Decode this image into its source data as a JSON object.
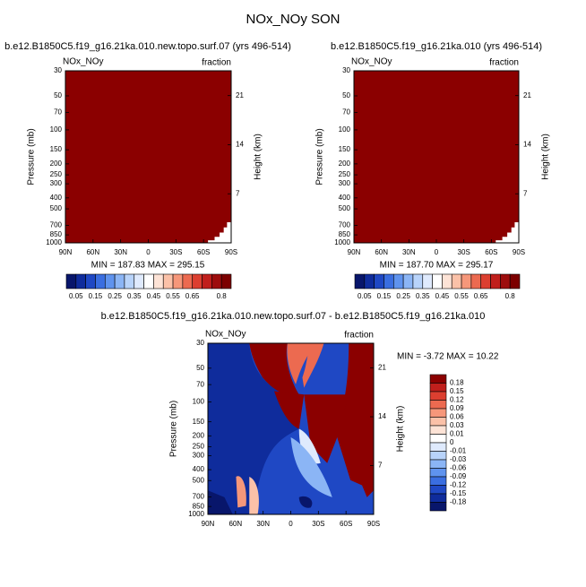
{
  "title": "NOx_NOy SON",
  "chart_data": [
    {
      "type": "contour",
      "title": "b.e12.B1850C5.f19_g16.21ka.010.new.topo.surf.07 (yrs 496-514)",
      "left_label": "NOx_NOy",
      "right_label": "fraction",
      "ylabel": "Pressure (mb)",
      "y2label": "Height (km)",
      "ylim": [
        1000,
        30
      ],
      "ylog": true,
      "yticks": [
        30,
        50,
        70,
        100,
        150,
        200,
        250,
        300,
        400,
        500,
        700,
        850,
        1000
      ],
      "y2lim": [
        0,
        24.54
      ],
      "y2ticks": [
        7,
        14,
        21
      ],
      "xlim": [
        90,
        -90
      ],
      "xticks": [
        {
          "value": 90,
          "label": "90N"
        },
        {
          "value": 60,
          "label": "60N"
        },
        {
          "value": 30,
          "label": "30N"
        },
        0,
        {
          "value": -30,
          "label": "30S"
        },
        {
          "value": -60,
          "label": "60S"
        },
        {
          "value": -90,
          "label": "90S"
        }
      ],
      "stats": "MIN = 187.83   MAX = 295.15",
      "colorbar": {
        "orientation": "horizontal",
        "lim": [
          0,
          0.85
        ],
        "ticks": [
          0.05,
          0.15,
          0.25,
          0.35,
          0.45,
          0.55,
          0.65,
          0.8
        ],
        "colors": [
          "#08166b",
          "#0f2c9c",
          "#1f48c4",
          "#3a6ee0",
          "#5f93ee",
          "#8bb5f5",
          "#b8d3fa",
          "#dfeafd",
          "#ffffff",
          "#fde3d6",
          "#fbc1a8",
          "#f6977a",
          "#ec6a50",
          "#dc3f30",
          "#c01f1c",
          "#9d0d0d",
          "#7c0000"
        ]
      }
    },
    {
      "type": "contour",
      "title": "b.e12.B1850C5.f19_g16.21ka.010 (yrs 496-514)",
      "left_label": "NOx_NOy",
      "right_label": "fraction",
      "ylabel": "Pressure (mb)",
      "y2label": "Height (km)",
      "ylim": [
        1000,
        30
      ],
      "ylog": true,
      "yticks": [
        30,
        50,
        70,
        100,
        150,
        200,
        250,
        300,
        400,
        500,
        700,
        850,
        1000
      ],
      "y2lim": [
        0,
        24.54
      ],
      "y2ticks": [
        7,
        14,
        21
      ],
      "xlim": [
        90,
        -90
      ],
      "xticks": [
        {
          "value": 90,
          "label": "90N"
        },
        {
          "value": 60,
          "label": "60N"
        },
        {
          "value": 30,
          "label": "30N"
        },
        0,
        {
          "value": -30,
          "label": "30S"
        },
        {
          "value": -60,
          "label": "60S"
        },
        {
          "value": -90,
          "label": "90S"
        }
      ],
      "stats": "MIN = 187.70   MAX = 295.17",
      "colorbar": {
        "orientation": "horizontal",
        "lim": [
          0,
          0.85
        ],
        "ticks": [
          0.05,
          0.15,
          0.25,
          0.35,
          0.45,
          0.55,
          0.65,
          0.8
        ],
        "colors": [
          "#08166b",
          "#0f2c9c",
          "#1f48c4",
          "#3a6ee0",
          "#5f93ee",
          "#8bb5f5",
          "#b8d3fa",
          "#dfeafd",
          "#ffffff",
          "#fde3d6",
          "#fbc1a8",
          "#f6977a",
          "#ec6a50",
          "#dc3f30",
          "#c01f1c",
          "#9d0d0d",
          "#7c0000"
        ]
      }
    },
    {
      "type": "contour",
      "title": "b.e12.B1850C5.f19_g16.21ka.010.new.topo.surf.07 - b.e12.B1850C5.f19_g16.21ka.010",
      "left_label": "NOx_NOy",
      "right_label": "fraction",
      "ylabel": "Pressure (mb)",
      "y2label": "Height (km)",
      "ylim": [
        1000,
        30
      ],
      "ylog": true,
      "yticks": [
        30,
        50,
        70,
        100,
        150,
        200,
        250,
        300,
        400,
        500,
        700,
        850,
        1000
      ],
      "y2lim": [
        0,
        24.54
      ],
      "y2ticks": [
        7,
        14,
        21
      ],
      "xlim": [
        90,
        -90
      ],
      "xticks": [
        {
          "value": 90,
          "label": "90N"
        },
        {
          "value": 60,
          "label": "60N"
        },
        {
          "value": 30,
          "label": "30N"
        },
        0,
        {
          "value": -30,
          "label": "30S"
        },
        {
          "value": -60,
          "label": "60S"
        },
        {
          "value": -90,
          "label": "90S"
        }
      ],
      "stats": "MIN = -3.72   MAX = 10.22",
      "colorbar": {
        "orientation": "vertical",
        "levels": [
          0.18,
          0.15,
          0.12,
          0.09,
          0.06,
          0.03,
          0.01,
          0,
          -0.01,
          -0.03,
          -0.06,
          -0.09,
          -0.12,
          -0.15,
          -0.18
        ],
        "colors": [
          "#8b0000",
          "#c01f1c",
          "#dc3f30",
          "#ec6a50",
          "#f6977a",
          "#fbc1a8",
          "#fde3d6",
          "#ffffff",
          "#dfeafd",
          "#b8d3fa",
          "#8bb5f5",
          "#5f93ee",
          "#3a6ee0",
          "#1f48c4",
          "#0f2c9c",
          "#08166b"
        ]
      }
    }
  ]
}
